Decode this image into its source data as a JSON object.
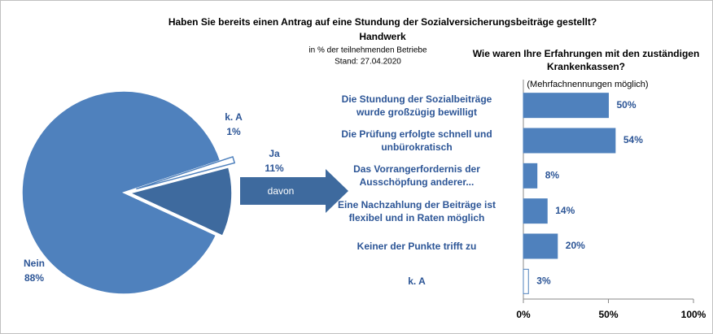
{
  "chart_data": [
    {
      "type": "pie",
      "title": "Haben Sie bereits einen Antrag auf eine Stundung der Sozialversicherungsbeiträge gestellt?",
      "subtitle": "Handwerk",
      "note": "in % der teilnehmenden Betriebe",
      "date": "Stand:  27.04.2020",
      "annotation": "davon",
      "categories": [
        "Nein",
        "Ja",
        "k. A"
      ],
      "values": [
        88,
        11,
        1
      ],
      "value_labels": [
        "88%",
        "11%",
        "1%"
      ],
      "colors": [
        "#4f81bd",
        "#3e6a9e",
        "#ffffff"
      ]
    },
    {
      "type": "barh",
      "title": "Wie waren Ihre Erfahrungen mit den zuständigen\nKrankenkassen?",
      "subtitle": "(Mehrfachnennungen möglich)",
      "categories": [
        "Die Stundung der Sozialbeiträge\nwurde großzügig bewilligt",
        "Die Prüfung erfolgte schnell und\nunbürokratisch",
        "Das Vorrangerfordernis der\nAusschöpfung anderer...",
        "Eine Nachzahlung der Beiträge ist\nflexibel und in Raten möglich",
        "Keiner der Punkte trifft zu",
        "k. A"
      ],
      "values": [
        50,
        54,
        8,
        14,
        20,
        3
      ],
      "value_labels": [
        "50%",
        "54%",
        "8%",
        "14%",
        "20%",
        "3%"
      ],
      "colors": [
        "#4f81bd",
        "#4f81bd",
        "#4f81bd",
        "#4f81bd",
        "#4f81bd",
        "#ffffff"
      ],
      "xlim": [
        0,
        100
      ],
      "xticks": [
        {
          "value": 0,
          "label": "0%"
        },
        {
          "value": 50,
          "label": "50%"
        },
        {
          "value": 100,
          "label": "100%"
        }
      ]
    }
  ]
}
